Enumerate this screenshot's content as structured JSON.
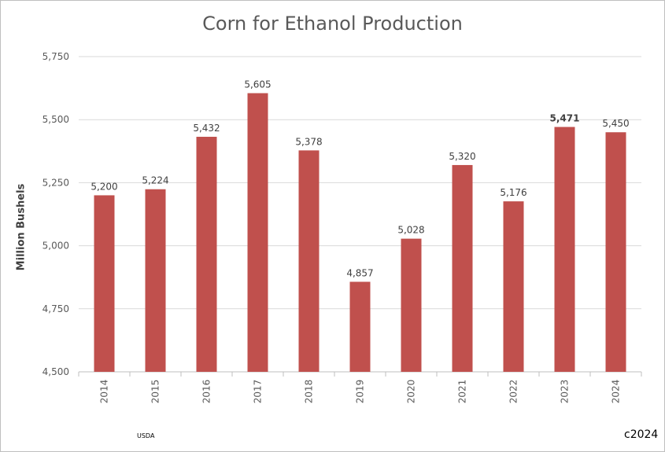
{
  "chart_data": {
    "type": "bar",
    "title": "Corn for Ethanol Production",
    "xlabel": "",
    "ylabel": "Million Bushels",
    "categories": [
      "2014",
      "2015",
      "2016",
      "2017",
      "2018",
      "2019",
      "2020",
      "2021",
      "2022",
      "2023",
      "2024"
    ],
    "values": [
      5200,
      5224,
      5432,
      5605,
      5378,
      4857,
      5028,
      5320,
      5176,
      5471,
      5450
    ],
    "data_labels": [
      "5,200",
      "5,224",
      "5,432",
      "5,605",
      "5,378",
      "4,857",
      "5,028",
      "5,320",
      "5,176",
      "5,471",
      "5,450"
    ],
    "bold_labels": [
      "2023"
    ],
    "ylim": [
      4500,
      5750
    ],
    "yticks": [
      4500,
      4750,
      5000,
      5250,
      5500,
      5750
    ],
    "ytick_labels": [
      "4,500",
      "4,750",
      "5,000",
      "5,250",
      "5,500",
      "5,750"
    ],
    "grid": true,
    "legend": "none",
    "bar_color": "#c0504d"
  },
  "footer": {
    "source": "USDA",
    "copyright": "c2024"
  }
}
